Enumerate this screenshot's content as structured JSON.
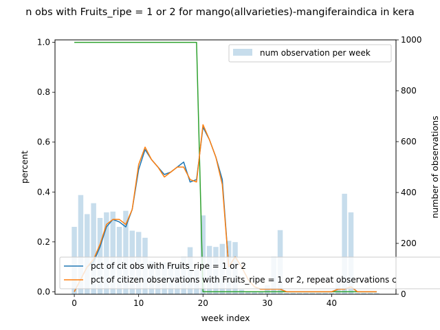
{
  "chart_data": {
    "type": "bar",
    "title": "n obs with Fruits_ripe = 1 or 2 for mango(allvarieties)-mangiferaindica in kera",
    "xlabel": "week index",
    "ylabel": "percent",
    "y2label": "number of observations",
    "xlim": [
      -3,
      50
    ],
    "ylim": [
      -0.01,
      1.01
    ],
    "y2lim": [
      0,
      1000
    ],
    "xticks": [
      0,
      10,
      20,
      30,
      40
    ],
    "yticks": [
      0.0,
      0.2,
      0.4,
      0.6,
      0.8,
      1.0
    ],
    "y2ticks": [
      0,
      200,
      400,
      600,
      800,
      1000
    ],
    "legend_top": {
      "position": "top-right",
      "label": "num observation per week"
    },
    "legend_bottom": {
      "position": "bottom-left",
      "labels": [
        "pct of cit obs with Fruits_ripe = 1 or 2",
        "pct of citizen observations with Fruits_ripe = 1 or 2, repeat observations c"
      ]
    },
    "bars": {
      "x": [
        0,
        1,
        2,
        3,
        4,
        5,
        6,
        7,
        8,
        9,
        10,
        11,
        12,
        13,
        14,
        15,
        16,
        17,
        18,
        19,
        20,
        21,
        22,
        23,
        24,
        25,
        26,
        27,
        28,
        29,
        30,
        31,
        32,
        33,
        34,
        35,
        36,
        37,
        38,
        39,
        40,
        41,
        42,
        43,
        44,
        45,
        46,
        47
      ],
      "values": [
        265,
        390,
        315,
        358,
        300,
        322,
        325,
        265,
        328,
        250,
        245,
        222,
        130,
        110,
        125,
        120,
        120,
        148,
        185,
        95,
        310,
        190,
        186,
        198,
        210,
        205,
        18,
        12,
        10,
        10,
        35,
        148,
        252,
        5,
        5,
        5,
        5,
        5,
        5,
        5,
        5,
        55,
        395,
        322,
        5,
        5,
        5,
        5
      ],
      "color": "#1f77b4",
      "opacity": 0.25
    },
    "series": [
      {
        "name": "pct of cit obs with Fruits_ripe = 1 or 2",
        "color": "#1f77b4",
        "x": [
          0,
          1,
          2,
          3,
          4,
          5,
          6,
          7,
          8,
          9,
          10,
          11,
          12,
          13,
          14,
          15,
          16,
          17,
          18,
          19,
          20,
          21,
          22,
          23,
          24,
          25,
          26,
          27,
          28,
          29,
          30,
          31,
          32,
          33,
          34,
          35,
          36,
          37,
          38,
          39,
          40,
          41,
          42,
          43,
          44,
          45,
          46,
          47
        ],
        "values": [
          0.0,
          0.05,
          0.1,
          0.12,
          0.18,
          0.26,
          0.29,
          0.28,
          0.26,
          0.33,
          0.49,
          0.57,
          0.53,
          0.5,
          0.47,
          0.48,
          0.5,
          0.52,
          0.44,
          0.45,
          0.66,
          0.61,
          0.54,
          0.45,
          0.1,
          0.14,
          0.1,
          0.05,
          0.02,
          0.01,
          0.01,
          0.01,
          0.01,
          0.0,
          0.0,
          0.0,
          0.0,
          0.0,
          0.0,
          0.0,
          0.0,
          0.01,
          0.01,
          0.02,
          0.0,
          0.0,
          0.0,
          0.0
        ]
      },
      {
        "name": "pct of citizen observations with Fruits_ripe = 1 or 2, repeat observations c",
        "color": "#ff7f0e",
        "x": [
          0,
          1,
          2,
          3,
          4,
          5,
          6,
          7,
          8,
          9,
          10,
          11,
          12,
          13,
          14,
          15,
          16,
          17,
          18,
          19,
          20,
          21,
          22,
          23,
          24,
          25,
          26,
          27,
          28,
          29,
          30,
          31,
          32,
          33,
          34,
          35,
          36,
          37,
          38,
          39,
          40,
          41,
          42,
          43,
          44,
          45,
          46,
          47
        ],
        "values": [
          0.0,
          0.05,
          0.1,
          0.13,
          0.19,
          0.27,
          0.29,
          0.29,
          0.27,
          0.33,
          0.51,
          0.58,
          0.53,
          0.5,
          0.46,
          0.48,
          0.5,
          0.5,
          0.45,
          0.44,
          0.67,
          0.61,
          0.54,
          0.43,
          0.1,
          0.14,
          0.1,
          0.05,
          0.02,
          0.01,
          0.01,
          0.01,
          0.01,
          0.0,
          0.0,
          0.0,
          0.0,
          0.0,
          0.0,
          0.0,
          0.0,
          0.01,
          0.01,
          0.02,
          0.0,
          0.0,
          0.0,
          0.0
        ]
      },
      {
        "color": "#2ca02c",
        "x": [
          0,
          1,
          2,
          3,
          4,
          5,
          6,
          7,
          8,
          9,
          10,
          11,
          12,
          13,
          14,
          15,
          16,
          17,
          18,
          19,
          20,
          21,
          22,
          23,
          24,
          25,
          26,
          27,
          28,
          29,
          30,
          31,
          32,
          33,
          34,
          35,
          36,
          37,
          38,
          39,
          40,
          41,
          42,
          43,
          44,
          45,
          46,
          47
        ],
        "values": [
          1,
          1,
          1,
          1,
          1,
          1,
          1,
          1,
          1,
          1,
          1,
          1,
          1,
          1,
          1,
          1,
          1,
          1,
          1,
          1,
          0,
          0,
          0,
          0,
          0,
          0,
          0,
          0,
          0,
          0,
          0,
          0,
          0,
          0,
          0,
          0,
          0,
          0,
          0,
          0,
          0,
          0,
          0,
          0,
          0,
          0,
          0,
          0
        ]
      }
    ]
  }
}
